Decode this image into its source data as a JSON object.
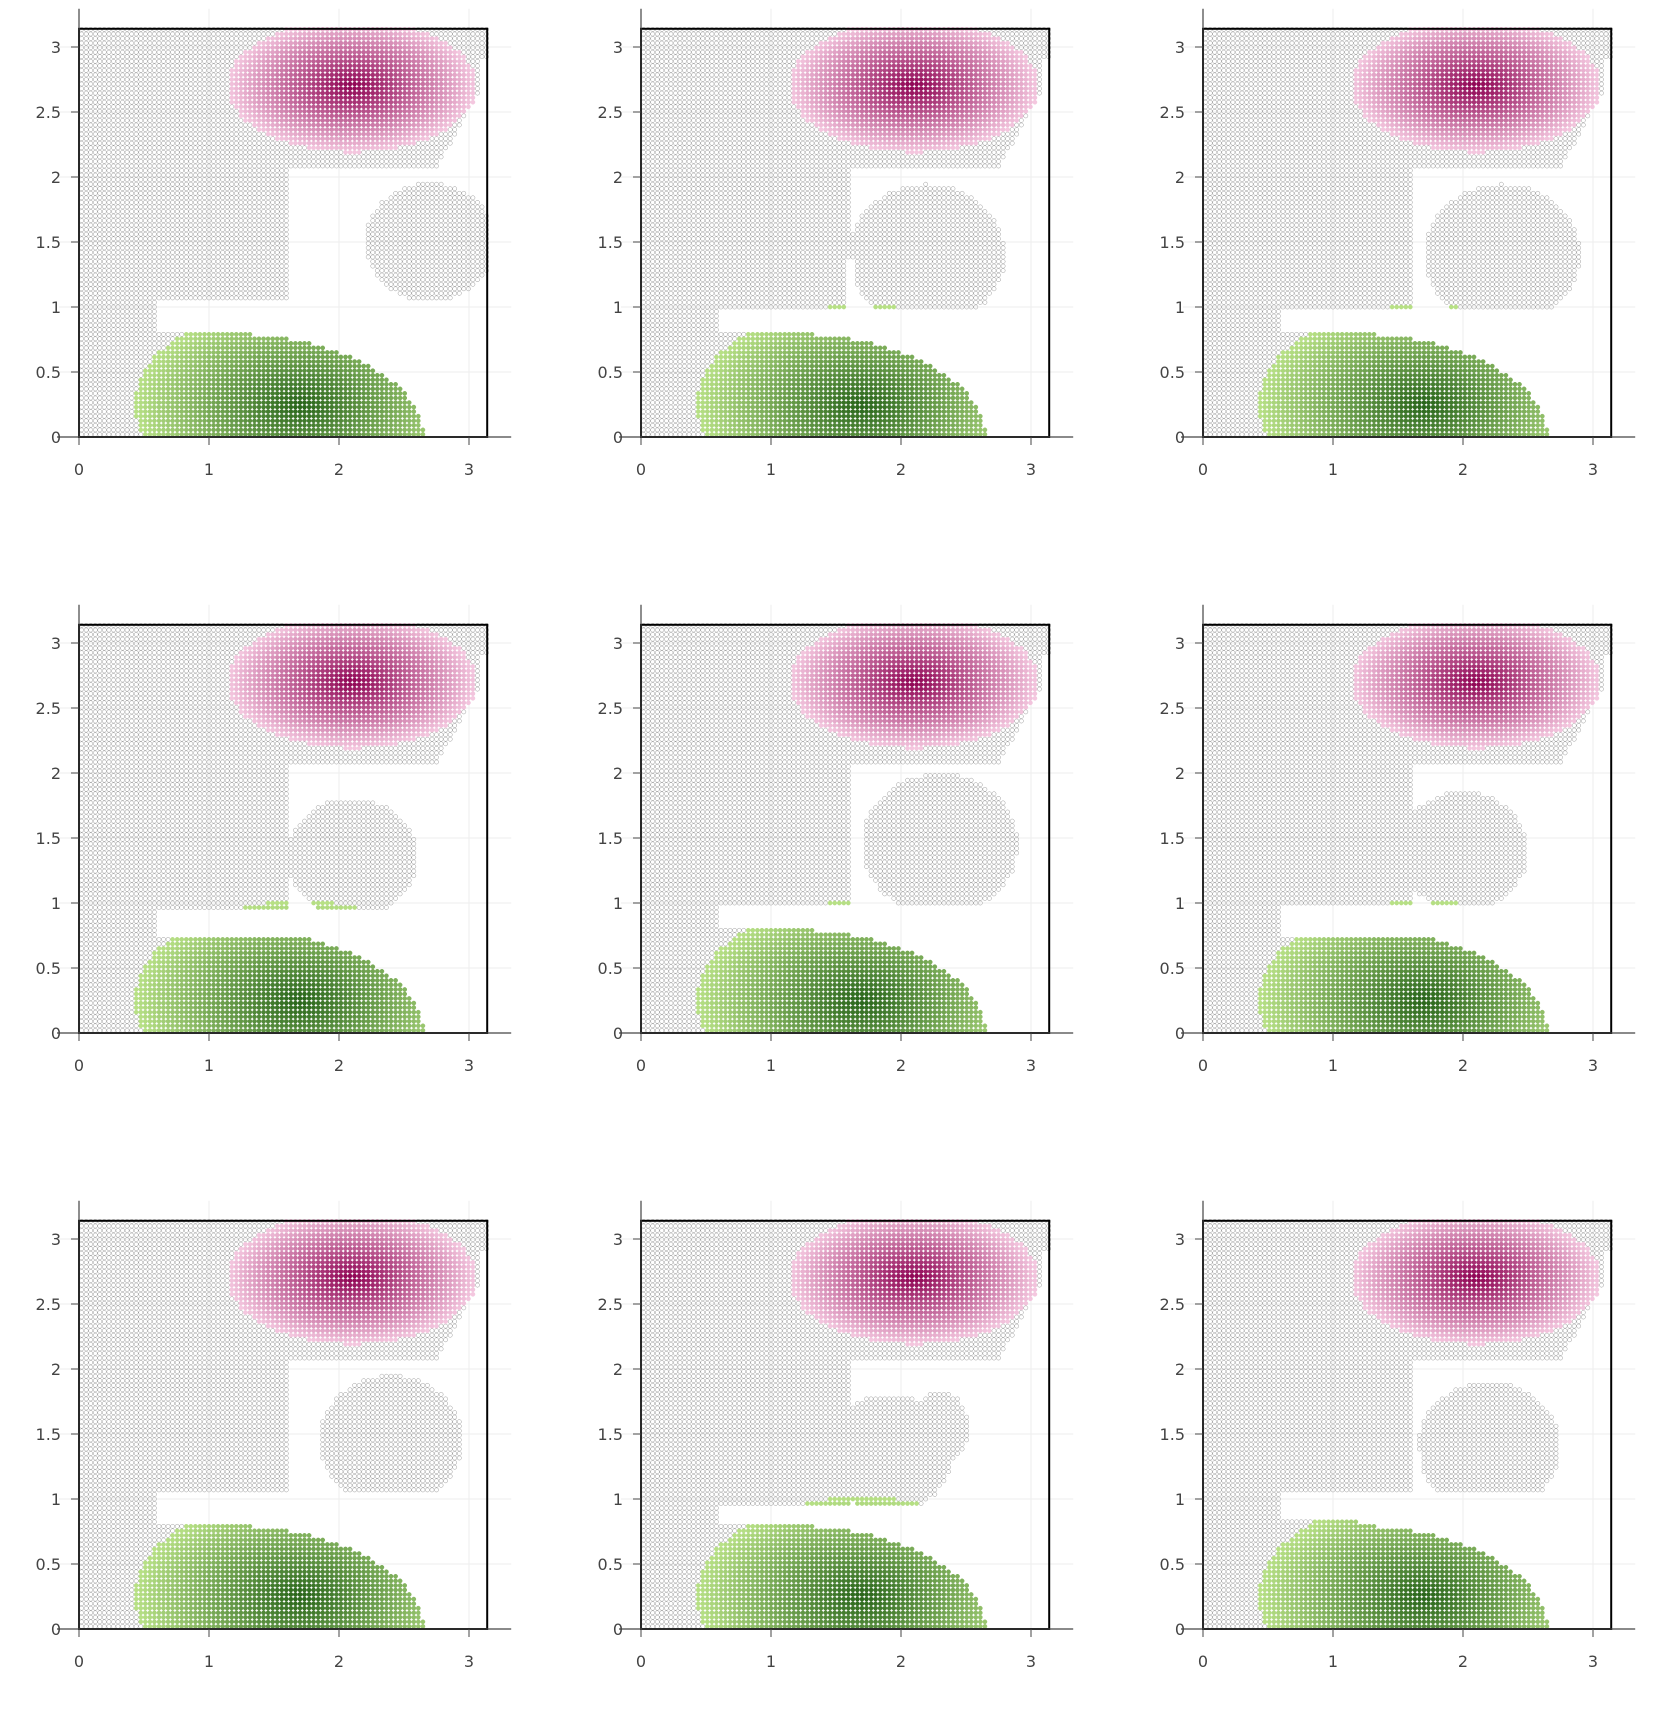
{
  "colors": {
    "background": "#ffffff",
    "gridline": "#eeeeee",
    "axis_line": "#444444",
    "frame": "#000000",
    "marker_outline": "#9a9a9a",
    "tick_label": "#444444",
    "magenta_peak": "#8e0152",
    "magenta_light": "#f4c7df",
    "green_peak": "#276419",
    "green_light": "#b8e186"
  },
  "chart_data": [
    {
      "type": "scatter",
      "panel": "row1-col1",
      "xlim": [
        0,
        3.14
      ],
      "ylim": [
        0,
        3.14
      ],
      "xticks": [
        "0",
        "1",
        "2",
        "3"
      ],
      "yticks": [
        "0",
        "0.5",
        "1",
        "1.5",
        "2",
        "2.5",
        "3"
      ],
      "grid": true,
      "magenta_center": [
        2.1,
        2.7
      ],
      "green_center": [
        1.7,
        0.25
      ],
      "gap_y": [
        0.8,
        1.05
      ],
      "lobe_center": [
        2.7,
        1.5
      ],
      "lobe_radius": 0.5,
      "pinch": false,
      "island": false
    },
    {
      "type": "scatter",
      "panel": "row1-col2",
      "xlim": [
        0,
        3.14
      ],
      "ylim": [
        0,
        3.14
      ],
      "xticks": [
        "0",
        "1",
        "2",
        "3"
      ],
      "yticks": [
        "0",
        "0.5",
        "1",
        "1.5",
        "2",
        "2.5",
        "3"
      ],
      "grid": true,
      "magenta_center": [
        2.1,
        2.7
      ],
      "green_center": [
        1.7,
        0.25
      ],
      "gap_y": [
        0.8,
        1.0
      ],
      "lobe_center": [
        2.2,
        1.4
      ],
      "lobe_radius": 0.6,
      "pinch": true,
      "island": false
    },
    {
      "type": "scatter",
      "panel": "row1-col3",
      "xlim": [
        0,
        3.14
      ],
      "ylim": [
        0,
        3.14
      ],
      "xticks": [
        "0",
        "1",
        "2",
        "3"
      ],
      "yticks": [
        "0",
        "0.5",
        "1",
        "1.5",
        "2",
        "2.5",
        "3"
      ],
      "grid": true,
      "magenta_center": [
        2.1,
        2.7
      ],
      "green_center": [
        1.7,
        0.25
      ],
      "gap_y": [
        0.8,
        1.0
      ],
      "lobe_center": [
        2.3,
        1.4
      ],
      "lobe_radius": 0.6,
      "pinch": false,
      "island": false
    },
    {
      "type": "scatter",
      "panel": "row2-col1",
      "xlim": [
        0,
        3.14
      ],
      "ylim": [
        0,
        3.14
      ],
      "xticks": [
        "0",
        "1",
        "2",
        "3"
      ],
      "yticks": [
        "0",
        "0.5",
        "1",
        "1.5",
        "2",
        "2.5",
        "3"
      ],
      "grid": true,
      "magenta_center": [
        2.1,
        2.7
      ],
      "green_center": [
        1.7,
        0.25
      ],
      "gap_y": [
        0.75,
        0.95
      ],
      "lobe_center": [
        2.1,
        1.35
      ],
      "lobe_radius": 0.5,
      "pinch": false,
      "island": true,
      "island_center": [
        2.3,
        1.6
      ],
      "island_radius": 0.15
    },
    {
      "type": "scatter",
      "panel": "row2-col2",
      "xlim": [
        0,
        3.14
      ],
      "ylim": [
        0,
        3.14
      ],
      "xticks": [
        "0",
        "1",
        "2",
        "3"
      ],
      "yticks": [
        "0",
        "0.5",
        "1",
        "1.5",
        "2",
        "2.5",
        "3"
      ],
      "grid": true,
      "magenta_center": [
        2.1,
        2.7
      ],
      "green_center": [
        1.7,
        0.25
      ],
      "gap_y": [
        0.8,
        1.0
      ],
      "lobe_center": [
        2.3,
        1.45
      ],
      "lobe_radius": 0.6,
      "pinch": true,
      "island": false
    },
    {
      "type": "scatter",
      "panel": "row2-col3",
      "xlim": [
        0,
        3.14
      ],
      "ylim": [
        0,
        3.14
      ],
      "xticks": [
        "0",
        "1",
        "2",
        "3"
      ],
      "yticks": [
        "0",
        "0.5",
        "1",
        "1.5",
        "2",
        "2.5",
        "3"
      ],
      "grid": true,
      "magenta_center": [
        2.1,
        2.7
      ],
      "green_center": [
        1.7,
        0.25
      ],
      "gap_y": [
        0.75,
        1.0
      ],
      "lobe_center": [
        2.0,
        1.4
      ],
      "lobe_radius": 0.5,
      "pinch": false,
      "island": true,
      "island_center": [
        2.35,
        1.45
      ],
      "island_radius": 0.14
    },
    {
      "type": "scatter",
      "panel": "row3-col1",
      "xlim": [
        0,
        3.14
      ],
      "ylim": [
        0,
        3.14
      ],
      "xticks": [
        "0",
        "1",
        "2",
        "3"
      ],
      "yticks": [
        "0",
        "0.5",
        "1",
        "1.5",
        "2",
        "2.5",
        "3"
      ],
      "grid": true,
      "magenta_center": [
        2.1,
        2.7
      ],
      "green_center": [
        1.7,
        0.25
      ],
      "gap_y": [
        0.8,
        1.05
      ],
      "lobe_center": [
        2.4,
        1.45
      ],
      "lobe_radius": 0.55,
      "pinch": false,
      "island": false
    },
    {
      "type": "scatter",
      "panel": "row3-col2",
      "xlim": [
        0,
        3.14
      ],
      "ylim": [
        0,
        3.14
      ],
      "xticks": [
        "0",
        "1",
        "2",
        "3"
      ],
      "yticks": [
        "0",
        "0.5",
        "1",
        "1.5",
        "2",
        "2.5",
        "3"
      ],
      "grid": true,
      "magenta_center": [
        2.1,
        2.7
      ],
      "green_center": [
        1.7,
        0.25
      ],
      "gap_y": [
        0.8,
        0.95
      ],
      "lobe_center": [
        1.9,
        1.35
      ],
      "lobe_radius": 0.5,
      "pinch": false,
      "island": true,
      "island_center": [
        2.3,
        1.55
      ],
      "island_radius": 0.28
    },
    {
      "type": "scatter",
      "panel": "row3-col3",
      "xlim": [
        0,
        3.14
      ],
      "ylim": [
        0,
        3.14
      ],
      "xticks": [
        "0",
        "1",
        "2",
        "3"
      ],
      "yticks": [
        "0",
        "0.5",
        "1",
        "1.5",
        "2",
        "2.5",
        "3"
      ],
      "grid": true,
      "magenta_center": [
        2.1,
        2.7
      ],
      "green_center": [
        1.7,
        0.25
      ],
      "gap_y": [
        0.85,
        1.05
      ],
      "lobe_center": [
        2.2,
        1.4
      ],
      "lobe_radius": 0.55,
      "pinch": true,
      "island": false
    }
  ]
}
